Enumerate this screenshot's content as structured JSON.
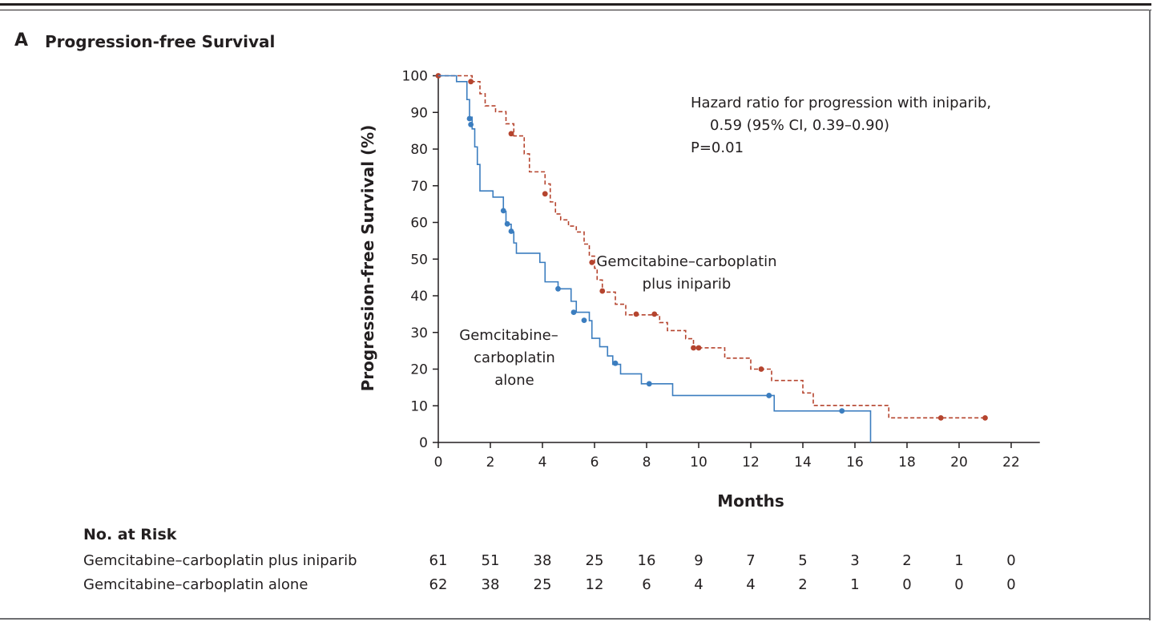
{
  "panel": {
    "letter": "A",
    "title": "Progression-free Survival"
  },
  "chart_data": {
    "type": "line",
    "subtype": "kaplan-meier step",
    "title": "Progression-free Survival",
    "xlabel": "Months",
    "ylabel": "Progression-free Survival (%)",
    "xlim": [
      0,
      23
    ],
    "ylim": [
      0,
      100
    ],
    "x_ticks": [
      0,
      2,
      4,
      6,
      8,
      10,
      12,
      14,
      16,
      18,
      20,
      22
    ],
    "y_ticks": [
      0,
      10,
      20,
      30,
      40,
      50,
      60,
      70,
      80,
      90,
      100
    ],
    "grid": false,
    "series": [
      {
        "name": "Gemcitabine–carboplatin plus iniparib",
        "label_lines": [
          "Gemcitabine–carboplatin",
          "plus iniparib"
        ],
        "color": "#b5442e",
        "line_style": "dashed",
        "steps": [
          [
            0,
            100
          ],
          [
            1.3,
            98.4
          ],
          [
            1.6,
            95.1
          ],
          [
            1.8,
            91.8
          ],
          [
            2.2,
            90.2
          ],
          [
            2.6,
            86.9
          ],
          [
            2.9,
            83.6
          ],
          [
            3.3,
            78.7
          ],
          [
            3.5,
            73.8
          ],
          [
            4.1,
            70.5
          ],
          [
            4.3,
            65.6
          ],
          [
            4.5,
            62.3
          ],
          [
            4.7,
            60.7
          ],
          [
            5.0,
            59.0
          ],
          [
            5.3,
            57.4
          ],
          [
            5.6,
            54.1
          ],
          [
            5.8,
            50.8
          ],
          [
            6.0,
            47.5
          ],
          [
            6.1,
            44.3
          ],
          [
            6.3,
            41.0
          ],
          [
            6.8,
            37.7
          ],
          [
            7.2,
            34.8
          ],
          [
            8.5,
            32.7
          ],
          [
            8.8,
            30.5
          ],
          [
            9.5,
            28.3
          ],
          [
            9.8,
            25.8
          ],
          [
            11.0,
            23.0
          ],
          [
            12.0,
            20.0
          ],
          [
            12.8,
            16.9
          ],
          [
            14.0,
            13.5
          ],
          [
            14.4,
            10.1
          ],
          [
            17.3,
            6.7
          ],
          [
            21.0,
            6.7
          ]
        ],
        "censored": [
          [
            0,
            100
          ],
          [
            1.25,
            98.4
          ],
          [
            2.8,
            84.2
          ],
          [
            4.1,
            67.8
          ],
          [
            5.9,
            49.1
          ],
          [
            6.3,
            41.3
          ],
          [
            7.6,
            35.0
          ],
          [
            8.3,
            35.0
          ],
          [
            9.8,
            25.8
          ],
          [
            10.0,
            25.8
          ],
          [
            12.4,
            20.0
          ],
          [
            19.3,
            6.7
          ],
          [
            21.0,
            6.7
          ]
        ]
      },
      {
        "name": "Gemcitabine–carboplatin alone",
        "label_lines": [
          "Gemcitabine–",
          "carboplatin",
          "alone"
        ],
        "color": "#3b7dbf",
        "line_style": "solid",
        "steps": [
          [
            0,
            100
          ],
          [
            0.7,
            98.4
          ],
          [
            1.1,
            93.5
          ],
          [
            1.2,
            88.7
          ],
          [
            1.3,
            85.5
          ],
          [
            1.4,
            80.6
          ],
          [
            1.5,
            75.8
          ],
          [
            1.6,
            68.6
          ],
          [
            2.1,
            66.9
          ],
          [
            2.5,
            63.0
          ],
          [
            2.6,
            59.5
          ],
          [
            2.8,
            57.4
          ],
          [
            2.9,
            54.4
          ],
          [
            3.0,
            51.6
          ],
          [
            3.9,
            49.1
          ],
          [
            4.1,
            43.8
          ],
          [
            4.6,
            41.9
          ],
          [
            5.1,
            38.5
          ],
          [
            5.3,
            35.5
          ],
          [
            5.8,
            33.2
          ],
          [
            5.9,
            28.4
          ],
          [
            6.2,
            26.1
          ],
          [
            6.5,
            23.6
          ],
          [
            6.7,
            21.3
          ],
          [
            7.0,
            18.7
          ],
          [
            7.8,
            16.0
          ],
          [
            9.0,
            12.8
          ],
          [
            12.9,
            8.6
          ],
          [
            16.6,
            0
          ]
        ],
        "censored": [
          [
            1.2,
            88.3
          ],
          [
            1.25,
            86.7
          ],
          [
            2.5,
            63.2
          ],
          [
            2.65,
            59.6
          ],
          [
            2.8,
            57.6
          ],
          [
            4.6,
            41.9
          ],
          [
            5.2,
            35.5
          ],
          [
            5.6,
            33.3
          ],
          [
            6.8,
            21.6
          ],
          [
            8.1,
            16.0
          ],
          [
            12.7,
            12.8
          ],
          [
            15.5,
            8.6
          ]
        ]
      }
    ],
    "annotation": {
      "lines": [
        "Hazard ratio for progression with iniparib,",
        "0.59 (95% CI, 0.39–0.90)",
        "P=0.01"
      ]
    },
    "risk_table": {
      "title": "No. at Risk",
      "months": [
        0,
        2,
        4,
        6,
        8,
        10,
        12,
        14,
        16,
        18,
        20,
        22
      ],
      "rows": [
        {
          "label": "Gemcitabine–carboplatin plus iniparib",
          "values": [
            "61",
            "51",
            "38",
            "25",
            "16",
            "9",
            "7",
            "5",
            "3",
            "2",
            "1",
            "0"
          ]
        },
        {
          "label": "Gemcitabine–carboplatin alone",
          "values": [
            "62",
            "38",
            "25",
            "12",
            "6",
            "4",
            "4",
            "2",
            "1",
            "0",
            "0",
            "0"
          ]
        }
      ]
    }
  }
}
